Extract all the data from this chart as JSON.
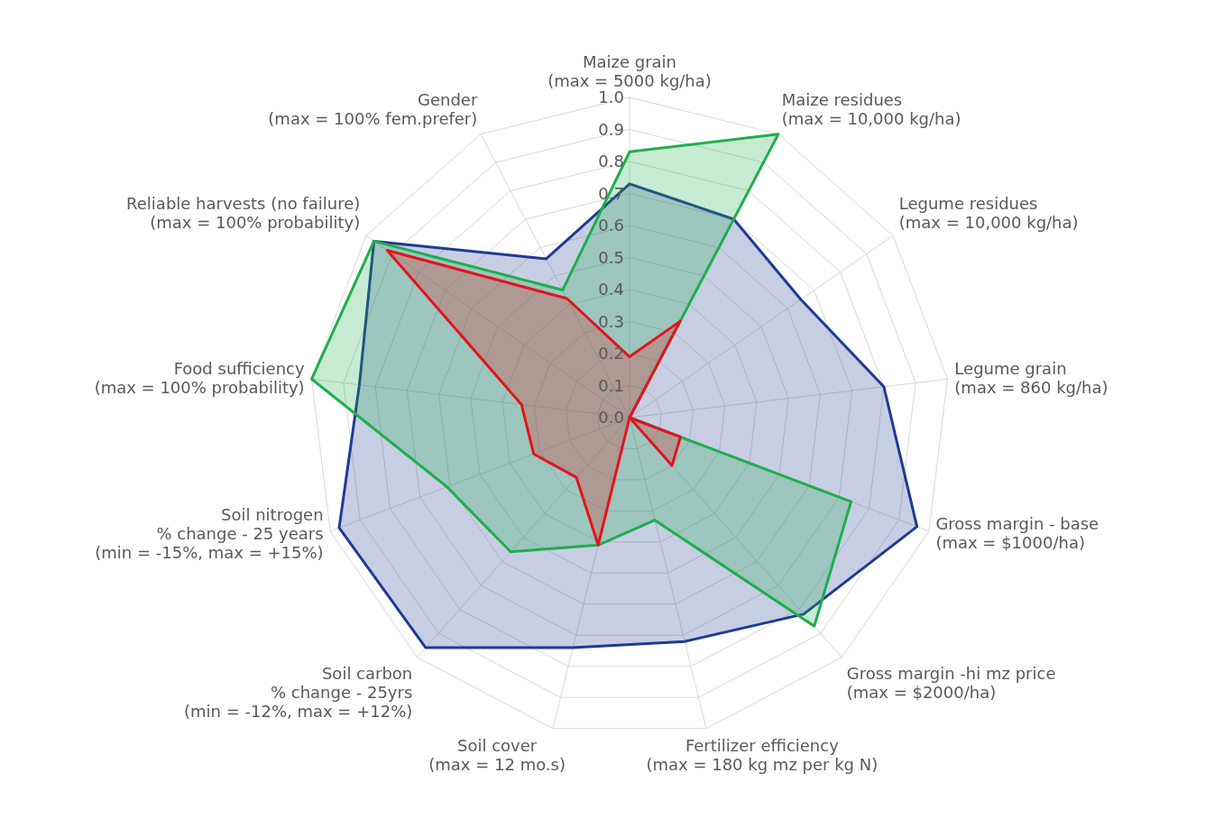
{
  "chart_data": {
    "type": "radar",
    "categories": [
      "Maize grain\n(max = 5000 kg/ha)",
      "Maize residues\n(max = 10,000 kg/ha)",
      "Legume residues\n(max = 10,000 kg/ha)",
      "Legume grain\n(max = 860 kg/ha)",
      "Gross margin - base\n(max = $1000/ha)",
      "Gross margin -hi mz price\n(max = $2000/ha)",
      "Fertilizer efficiency\n(max = 180 kg mz per kg N)",
      "Soil cover\n(max = 12 mo.s)",
      "Soil carbon\n% change - 25yrs\n(min = -12%, max = +12%)",
      "Soil nitrogen\n% change - 25 years\n(min = -15%, max = +15%)",
      "Food sufficiency\n(max = 100% probability)",
      "Reliable harvests (no failure)\n(max = 100% probability)",
      "Gender\n(max = 100% fem.prefer)"
    ],
    "series": [
      {
        "color": "#1f3a93",
        "values": [
          0.73,
          0.7,
          0.65,
          0.8,
          0.96,
          0.82,
          0.72,
          0.74,
          0.96,
          0.97,
          0.85,
          0.97,
          0.56
        ]
      },
      {
        "color": "#1fae4c",
        "values": [
          0.83,
          1.0,
          0,
          0,
          0.74,
          0.87,
          0.33,
          0.41,
          0.56,
          0.61,
          1.0,
          0.97,
          0.45
        ]
      },
      {
        "color": "#e3141c",
        "values": [
          0.19,
          0.34,
          0,
          0,
          0.17,
          0.2,
          0,
          0.41,
          0.25,
          0.32,
          0.34,
          0.92,
          0.42
        ]
      }
    ],
    "ylim": [
      0,
      1
    ],
    "yticks": [
      {
        "value": 0,
        "label": "0.0"
      },
      {
        "value": 0.1,
        "label": "0.1"
      },
      {
        "value": 0.2,
        "label": "0.2"
      },
      {
        "value": 0.3,
        "label": "0.3"
      },
      {
        "value": 0.4,
        "label": "0.4"
      },
      {
        "value": 0.5,
        "label": "0.5"
      },
      {
        "value": 0.6,
        "label": "0.6"
      },
      {
        "value": 0.7,
        "label": "0.7"
      },
      {
        "value": 0.8,
        "label": "0.8"
      },
      {
        "value": 0.9,
        "label": "0.9"
      },
      {
        "value": 1,
        "label": "1.0"
      }
    ],
    "grid": true
  }
}
